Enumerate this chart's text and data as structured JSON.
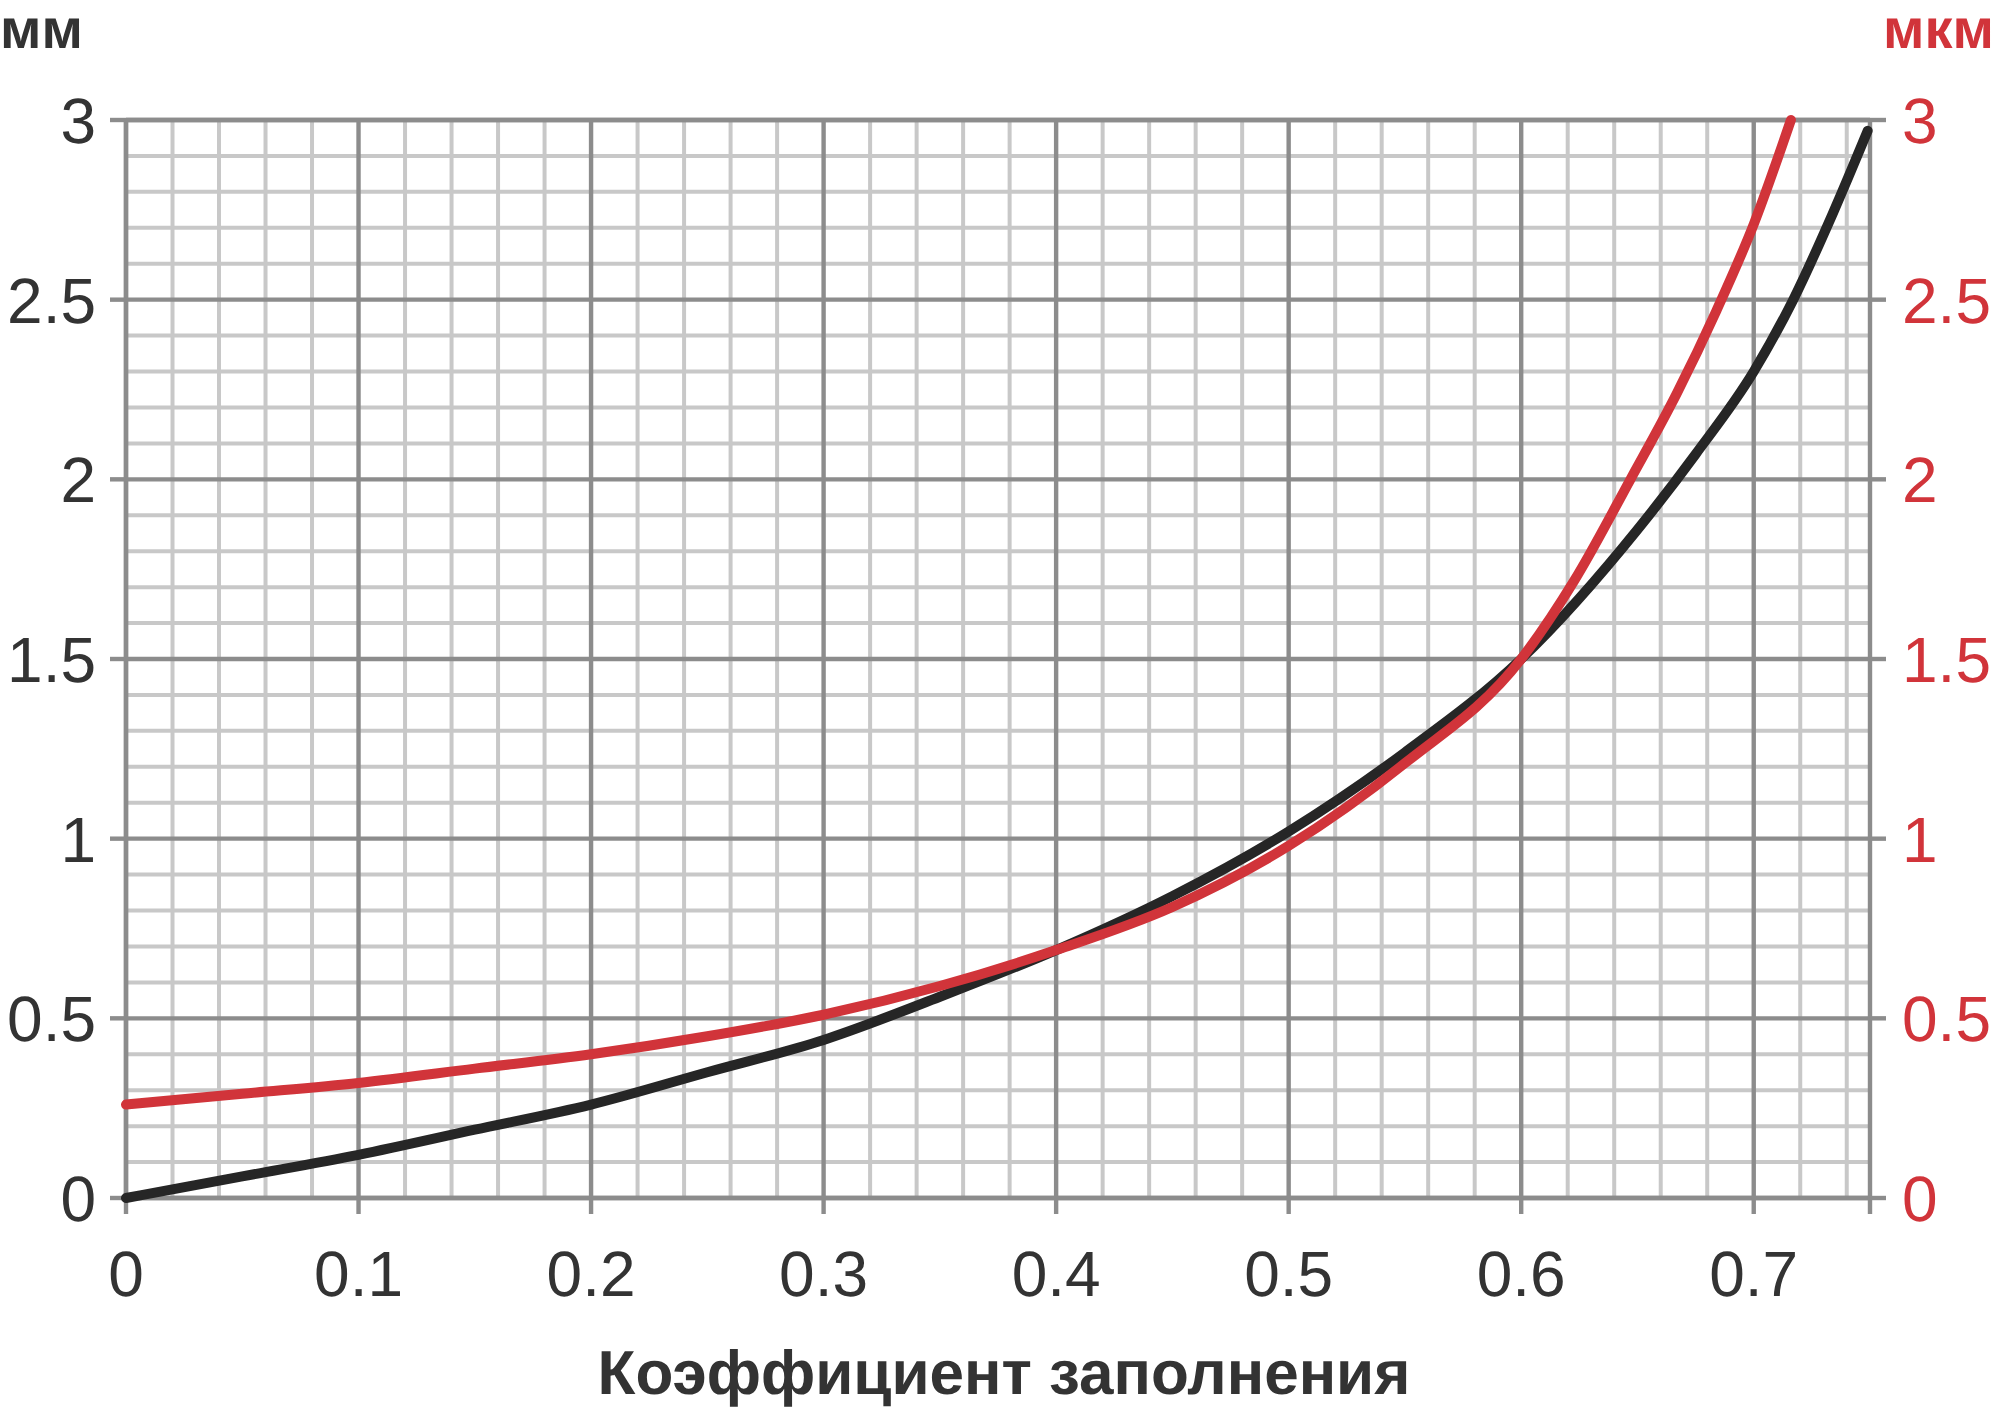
{
  "chart_data": {
    "type": "line",
    "xlabel": "Коэффициент заполнения",
    "ylabel": "мм",
    "y2label": "мкм",
    "xlim": [
      0,
      0.75
    ],
    "xticks": [
      0,
      {
        "value": 0.02,
        "label": null
      },
      {
        "value": 0.04,
        "label": null
      },
      {
        "value": 0.06,
        "label": null
      },
      {
        "value": 0.08,
        "label": null
      },
      0.1,
      {
        "value": 0.12,
        "label": null
      },
      {
        "value": 0.14,
        "label": null
      },
      {
        "value": 0.16,
        "label": null
      },
      {
        "value": 0.18,
        "label": null
      },
      0.2,
      {
        "value": 0.22,
        "label": null
      },
      {
        "value": 0.24,
        "label": null
      },
      {
        "value": 0.26,
        "label": null
      },
      {
        "value": 0.28,
        "label": null
      },
      0.3,
      {
        "value": 0.32,
        "label": null
      },
      {
        "value": 0.34,
        "label": null
      },
      {
        "value": 0.36,
        "label": null
      },
      {
        "value": 0.38,
        "label": null
      },
      0.4,
      {
        "value": 0.42,
        "label": null
      },
      {
        "value": 0.44,
        "label": null
      },
      {
        "value": 0.46,
        "label": null
      },
      {
        "value": 0.48,
        "label": null
      },
      0.5,
      {
        "value": 0.52,
        "label": null
      },
      {
        "value": 0.54,
        "label": null
      },
      {
        "value": 0.56,
        "label": null
      },
      {
        "value": 0.58,
        "label": null
      },
      0.6,
      {
        "value": 0.62,
        "label": null
      },
      {
        "value": 0.64,
        "label": null
      },
      {
        "value": 0.66,
        "label": null
      },
      {
        "value": 0.68,
        "label": null
      },
      0.7,
      {
        "value": 0.72,
        "label": null
      },
      {
        "value": 0.74,
        "label": null
      }
    ],
    "ylim": [
      0,
      3
    ],
    "yticks": [
      0,
      {
        "value": 0.1,
        "label": null
      },
      {
        "value": 0.2,
        "label": null
      },
      {
        "value": 0.3,
        "label": null
      },
      {
        "value": 0.4,
        "label": null
      },
      0.5,
      {
        "value": 0.6,
        "label": null
      },
      {
        "value": 0.7,
        "label": null
      },
      {
        "value": 0.8,
        "label": null
      },
      {
        "value": 0.9,
        "label": null
      },
      1,
      {
        "value": 1.1,
        "label": null
      },
      {
        "value": 1.2,
        "label": null
      },
      {
        "value": 1.3,
        "label": null
      },
      {
        "value": 1.4,
        "label": null
      },
      1.5,
      {
        "value": 1.6,
        "label": null
      },
      {
        "value": 1.7,
        "label": null
      },
      {
        "value": 1.8,
        "label": null
      },
      {
        "value": 1.9,
        "label": null
      },
      2,
      {
        "value": 2.1,
        "label": null
      },
      {
        "value": 2.2,
        "label": null
      },
      {
        "value": 2.3,
        "label": null
      },
      {
        "value": 2.4,
        "label": null
      },
      2.5,
      {
        "value": 2.6,
        "label": null
      },
      {
        "value": 2.7,
        "label": null
      },
      {
        "value": 2.8,
        "label": null
      },
      {
        "value": 2.9,
        "label": null
      },
      3
    ],
    "y2lim": [
      0,
      3
    ],
    "y2ticks": [
      0,
      0.5,
      1,
      1.5,
      2,
      2.5,
      3
    ],
    "grid": true,
    "series": [
      {
        "color": "#262626",
        "x": [
          0,
          0.05,
          0.1,
          0.15,
          0.2,
          0.25,
          0.3,
          0.35,
          0.4,
          0.45,
          0.5,
          0.55,
          0.6,
          0.65,
          0.675,
          0.7,
          0.717,
          0.734,
          0.749
        ],
        "values": [
          0,
          0.06,
          0.12,
          0.19,
          0.26,
          0.35,
          0.44,
          0.56,
          0.69,
          0.84,
          1.02,
          1.24,
          1.5,
          1.86,
          2.07,
          2.3,
          2.5,
          2.74,
          2.97
        ]
      },
      {
        "color": "#d1343a",
        "axis": "y2",
        "x": [
          0,
          0.05,
          0.1,
          0.15,
          0.2,
          0.25,
          0.3,
          0.35,
          0.4,
          0.45,
          0.5,
          0.55,
          0.6,
          0.623,
          0.647,
          0.667,
          0.684,
          0.7,
          0.716
        ],
        "values": [
          0.26,
          0.29,
          0.32,
          0.36,
          0.4,
          0.45,
          0.51,
          0.59,
          0.69,
          0.81,
          0.98,
          1.21,
          1.5,
          1.72,
          2.0,
          2.24,
          2.47,
          2.71,
          3.0
        ]
      }
    ]
  }
}
